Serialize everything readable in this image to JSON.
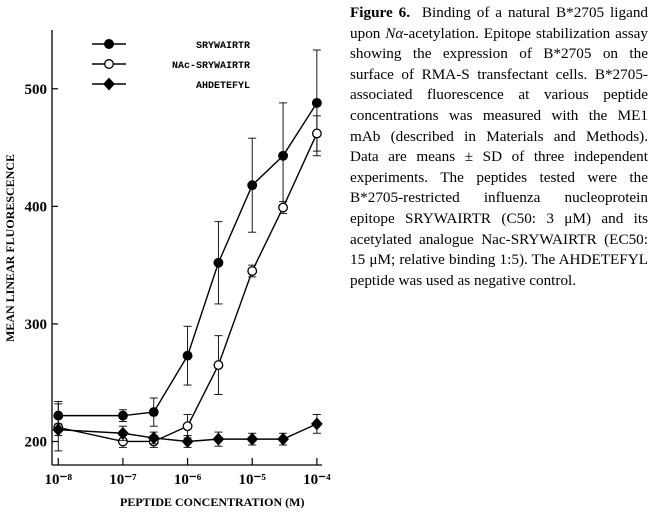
{
  "chart_data": {
    "type": "line",
    "xlabel": "PEPTIDE CONCENTRATION (M)",
    "ylabel": "MEAN LINEAR FLUORESCENCE",
    "xscale": "log",
    "x": [
      1e-08,
      1e-07,
      3e-07,
      1e-06,
      3e-06,
      1e-05,
      3e-05,
      0.0001
    ],
    "xlim": [
      8e-09,
      0.00012
    ],
    "xticks": [
      {
        "value": 1e-08,
        "label": "10⁻⁸"
      },
      {
        "value": 1e-07,
        "label": "10⁻⁷"
      },
      {
        "value": 1e-06,
        "label": "10⁻⁶"
      },
      {
        "value": 1e-05,
        "label": "10⁻⁵"
      },
      {
        "value": 0.0001,
        "label": "10⁻⁴"
      }
    ],
    "ylim": [
      180,
      550
    ],
    "yticks": [
      200,
      300,
      400,
      500
    ],
    "legend": "upper left",
    "series": [
      {
        "name": "SRYWAIRTR",
        "color": "#000000",
        "marker": "filled-circle",
        "values": [
          222,
          222,
          225,
          273,
          352,
          418,
          443,
          488
        ],
        "errors": [
          12,
          5,
          12,
          25,
          35,
          40,
          45,
          45
        ]
      },
      {
        "name": "NAc-SRYWAIRTR",
        "color": "#000000",
        "marker": "open-circle",
        "values": [
          212,
          200,
          200,
          213,
          265,
          345,
          399,
          462
        ],
        "errors": [
          20,
          5,
          5,
          10,
          25,
          5,
          5,
          15
        ]
      },
      {
        "name": "AHDETEFYL",
        "color": "#000000",
        "marker": "diamond",
        "values": [
          210,
          207,
          203,
          200,
          202,
          202,
          202,
          215
        ],
        "errors": [
          5,
          6,
          5,
          5,
          6,
          5,
          5,
          8
        ]
      }
    ]
  },
  "caption": {
    "label": "Figure 6.",
    "text": [
      "Binding of a natural B*2705 ligand upon ",
      "Nα",
      "-acetylation. Epitope stabilization assay showing the expression of B*2705 on the surface of RMA-S transfectant cells. B*2705-associated fluorescence at various peptide concentrations was measured with the ME1 mAb (described in Materials and Methods). Data are means ± SD of three independent experiments. The peptides tested were the B*2705-restricted influenza nucleoprotein epitope SRYWAIRTR (C50: 3 μM) and its acetylated analogue Nac-SRYWAIRTR (EC50: 15 μM; relative binding 1:5). The AHDETEFYL peptide was used as negative control."
    ]
  }
}
